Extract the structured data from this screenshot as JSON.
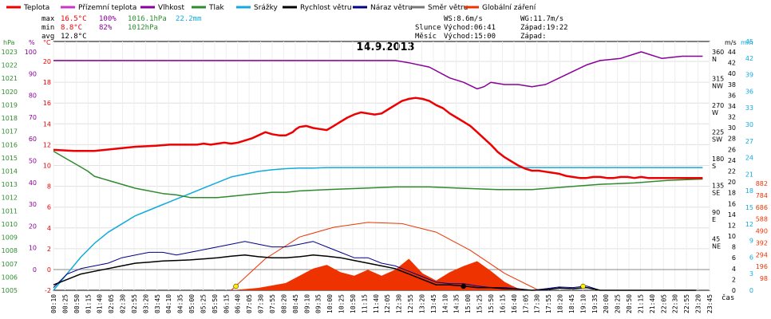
{
  "legend": [
    {
      "label": "Teplota",
      "color": "#ee0000"
    },
    {
      "label": "Přízemní teplota",
      "color": "#cc33cc"
    },
    {
      "label": "Vlhkost",
      "color": "#880099"
    },
    {
      "label": "Tlak",
      "color": "#2e8b2e"
    },
    {
      "label": "Srážky",
      "color": "#11aadd"
    },
    {
      "label": "Rychlost větru",
      "color": "#000000"
    },
    {
      "label": "Náraz větru",
      "color": "#000088"
    },
    {
      "label": "Směr větru",
      "color": "#777777"
    },
    {
      "label": "Globální záření",
      "color": "#ee3300"
    }
  ],
  "stats": {
    "max_label": "max",
    "max_temp": "16.5°C",
    "max_hum": "100%",
    "max_press": "1016.1hPa",
    "max_rain": "22.2mm",
    "min_label": "min",
    "min_temp": "8.8°C",
    "min_hum": "82%",
    "min_press": "1012hPa",
    "avg_label": "avg",
    "avg_temp": "12.8°C"
  },
  "info": {
    "ws": "WS:8.6m/s",
    "wg": "WG:11.7m/s",
    "sun_label": "Slunce",
    "sun_rise": "Východ:06:41",
    "sun_set": "Západ:19:22",
    "moon_label": "Měsíc",
    "moon_rise": "Východ:15:00",
    "moon_set": "Západ:"
  },
  "chart_data": {
    "type": "line",
    "title": "14.9.2013",
    "x_unit_label": "čas",
    "x_ticks": [
      "00:10",
      "00:25",
      "00:50",
      "01:15",
      "01:40",
      "02:05",
      "02:30",
      "02:55",
      "03:20",
      "03:45",
      "04:10",
      "04:35",
      "05:00",
      "05:25",
      "05:50",
      "06:15",
      "06:40",
      "07:05",
      "07:30",
      "07:55",
      "08:20",
      "08:45",
      "09:10",
      "09:35",
      "10:00",
      "10:25",
      "10:50",
      "11:15",
      "11:40",
      "12:05",
      "12:30",
      "12:55",
      "13:20",
      "13:45",
      "14:10",
      "14:35",
      "15:00",
      "15:25",
      "15:50",
      "16:15",
      "16:40",
      "17:05",
      "17:30",
      "17:55",
      "18:20",
      "18:45",
      "19:10",
      "19:35",
      "20:00",
      "20:25",
      "20:50",
      "21:15",
      "21:40",
      "22:05",
      "22:30",
      "22:55",
      "23:20",
      "23:45"
    ],
    "axes": {
      "hpa": {
        "label": "hPa",
        "ticks": [
          1005,
          1006,
          1007,
          1008,
          1009,
          1010,
          1011,
          1012,
          1013,
          1014,
          1015,
          1016,
          1017,
          1018,
          1019,
          1020,
          1021,
          1022,
          1023
        ]
      },
      "humidity": {
        "label": "%",
        "ticks": [
          0,
          10,
          20,
          30,
          40,
          50,
          60,
          70,
          80,
          90,
          100
        ]
      },
      "temp": {
        "label": "°C",
        "ticks": [
          -2,
          0,
          2,
          4,
          6,
          8,
          10,
          12,
          14,
          16,
          18,
          20
        ]
      },
      "wind": {
        "label": "m/s",
        "ticks": [
          0,
          2,
          4,
          6,
          8,
          10,
          12,
          14,
          16,
          18,
          20,
          22,
          24,
          26,
          28,
          30,
          32,
          34,
          36,
          38,
          40,
          42,
          44
        ]
      },
      "rain": {
        "label": "mm",
        "ticks": [
          0,
          3,
          6,
          9,
          12,
          15,
          18,
          21,
          24,
          27,
          30,
          33,
          36,
          39,
          42,
          45
        ]
      },
      "wdir": {
        "ticks": [
          {
            "deg": "45",
            "dir": "NE"
          },
          {
            "deg": "90",
            "dir": "E"
          },
          {
            "deg": "135",
            "dir": "SE"
          },
          {
            "deg": "180",
            "dir": "S"
          },
          {
            "deg": "225",
            "dir": "SW"
          },
          {
            "deg": "270",
            "dir": "W"
          },
          {
            "deg": "315",
            "dir": "NW"
          },
          {
            "deg": "360",
            "dir": "N"
          }
        ]
      },
      "rad": {
        "ticks": [
          98,
          196,
          294,
          392,
          490,
          588,
          686,
          784,
          882
        ]
      }
    },
    "series": [
      {
        "name": "Teplota",
        "unit": "°C",
        "x": [
          0,
          3,
          6,
          9,
          12,
          15,
          17,
          19,
          21,
          22,
          23,
          24,
          25,
          26,
          27,
          28,
          29,
          30,
          31,
          32,
          33,
          34,
          35,
          35.5,
          36,
          37,
          38,
          39,
          40,
          41,
          42,
          43,
          44,
          45,
          46,
          47,
          48,
          49,
          50,
          51,
          52,
          53,
          54,
          55,
          56,
          57,
          58,
          59,
          60,
          61,
          62,
          63,
          64,
          65,
          66,
          67,
          68,
          69,
          70,
          71,
          72,
          73,
          74,
          75,
          76,
          77,
          78,
          79,
          80,
          81,
          82,
          83,
          84,
          85,
          86,
          87,
          88,
          89,
          90,
          91,
          92,
          93,
          94,
          95
        ],
        "y": [
          11.5,
          11.4,
          11.4,
          11.6,
          11.8,
          11.9,
          12,
          12.0,
          12.0,
          12.1,
          12.0,
          12.1,
          12.2,
          12.1,
          12.2,
          12.4,
          12.6,
          12.9,
          13.2,
          13.0,
          12.9,
          12.9,
          13.2,
          13.5,
          13.7,
          13.8,
          13.6,
          13.5,
          13.4,
          13.8,
          14.2,
          14.6,
          14.9,
          15.1,
          15.0,
          14.9,
          15.0,
          15.4,
          15.8,
          16.2,
          16.4,
          16.5,
          16.4,
          16.2,
          15.8,
          15.5,
          15.0,
          14.6,
          14.2,
          13.8,
          13.2,
          12.6,
          12.0,
          11.3,
          10.8,
          10.4,
          10.0,
          9.7,
          9.5,
          9.5,
          9.4,
          9.3,
          9.2,
          9.0,
          8.9,
          8.8,
          8.8,
          8.9,
          8.9,
          8.8,
          8.8,
          8.9,
          8.9,
          8.8,
          8.9,
          8.8,
          8.8,
          8.8,
          8.8,
          8.8,
          8.8,
          8.8,
          8.8,
          8.8
        ],
        "color": "#ee0000"
      },
      {
        "name": "Vlhkost",
        "unit": "%",
        "x": [
          0,
          10,
          20,
          30,
          40,
          50,
          52,
          55,
          58,
          60,
          62,
          63,
          64,
          66,
          68,
          70,
          72,
          74,
          76,
          78,
          80,
          83,
          86,
          89,
          92,
          95
        ],
        "y": [
          96,
          96,
          96,
          96,
          96,
          96,
          95,
          93,
          88,
          86,
          83,
          84,
          86,
          85,
          85,
          84,
          85,
          88,
          91,
          94,
          96,
          97,
          100,
          97,
          98,
          98
        ],
        "color": "#880099"
      },
      {
        "name": "Tlak",
        "unit": "hPa",
        "x": [
          0,
          1,
          2,
          3,
          4,
          5,
          6,
          8,
          10,
          12,
          14,
          16,
          18,
          20,
          22,
          24,
          26,
          28,
          30,
          32,
          34,
          36,
          40,
          45,
          50,
          55,
          60,
          65,
          70,
          75,
          80,
          85,
          90,
          95
        ],
        "y": [
          1015.5,
          1015.2,
          1014.9,
          1014.6,
          1014.3,
          1014,
          1013.6,
          1013.3,
          1013,
          1012.7,
          1012.5,
          1012.3,
          1012.2,
          1012.0,
          1012.0,
          1012.0,
          1012.1,
          1012.2,
          1012.3,
          1012.4,
          1012.4,
          1012.5,
          1012.6,
          1012.7,
          1012.8,
          1012.8,
          1012.7,
          1012.6,
          1012.6,
          1012.8,
          1013,
          1013.1,
          1013.3,
          1013.4
        ],
        "color": "#2e8b2e"
      },
      {
        "name": "Srážky",
        "unit": "mm",
        "x": [
          0,
          2,
          4,
          6,
          8,
          10,
          12,
          14,
          16,
          18,
          20,
          22,
          24,
          26,
          28,
          30,
          32,
          34,
          36,
          38,
          40,
          45,
          50,
          55,
          60,
          65,
          70,
          75,
          80,
          85,
          90,
          95
        ],
        "y": [
          0,
          3,
          6,
          8.5,
          10.5,
          12,
          13.5,
          14.5,
          15.5,
          16.5,
          17.5,
          18.5,
          19.5,
          20.5,
          21,
          21.5,
          21.8,
          22.0,
          22.1,
          22.1,
          22.2,
          22.2,
          22.2,
          22.2,
          22.2,
          22.2,
          22.2,
          22.2,
          22.2,
          22.2,
          22.2,
          22.2
        ],
        "color": "#11aadd"
      },
      {
        "name": "Rychlost větru",
        "unit": "m/s",
        "x": [
          0,
          2,
          4,
          6,
          8,
          10,
          12,
          14,
          16,
          18,
          20,
          22,
          24,
          26,
          28,
          30,
          32,
          34,
          36,
          38,
          40,
          42,
          44,
          46,
          48,
          50,
          52,
          54,
          56,
          58,
          60,
          62,
          64,
          66,
          68,
          70,
          72,
          74,
          76,
          78,
          80,
          82,
          84,
          86,
          88,
          90,
          92,
          94
        ],
        "y": [
          1,
          2,
          3,
          3.5,
          4,
          4.5,
          5,
          5.2,
          5.4,
          5.5,
          5.6,
          5.8,
          6,
          6.3,
          6.5,
          6.2,
          6.0,
          6.0,
          6.2,
          6.5,
          6.3,
          6.0,
          5.5,
          5.0,
          4.5,
          4.0,
          3.0,
          2.0,
          1.0,
          1.0,
          0.8,
          0.5,
          0.5,
          0.3,
          0.2,
          0,
          0.1,
          0.4,
          0.3,
          0.5,
          0,
          0,
          0,
          0,
          0,
          0,
          0,
          0
        ],
        "color": "#000000"
      },
      {
        "name": "Náraz větru",
        "unit": "m/s",
        "x": [
          0,
          2,
          4,
          6,
          8,
          10,
          12,
          14,
          16,
          18,
          20,
          22,
          24,
          26,
          28,
          30,
          32,
          34,
          36,
          38,
          40,
          42,
          44,
          46,
          48,
          50,
          52,
          54,
          56,
          58,
          60,
          62,
          64,
          66,
          68,
          70,
          72,
          74,
          76,
          78,
          80,
          82,
          84,
          86,
          88,
          90,
          92,
          94
        ],
        "y": [
          0.5,
          3,
          4,
          4.5,
          5,
          6,
          6.5,
          7,
          7,
          6.5,
          7,
          7.5,
          8,
          8.5,
          9,
          8.5,
          8,
          8,
          8.5,
          9,
          8,
          7,
          6,
          6,
          5,
          4.5,
          3.5,
          2.5,
          1.5,
          1.2,
          1.2,
          0.8,
          0.5,
          0.5,
          0.3,
          0,
          0.3,
          0.6,
          0.5,
          0.8,
          0,
          0,
          0,
          0,
          0,
          0,
          0,
          0
        ],
        "color": "#000088"
      },
      {
        "name": "Globální záření",
        "unit": "W/m2",
        "x": [
          26,
          30,
          34,
          38,
          40,
          42,
          44,
          46,
          48,
          50,
          52,
          54,
          56,
          58,
          60,
          62,
          64,
          66,
          67,
          68,
          69,
          70
        ],
        "y": [
          0,
          20,
          60,
          180,
          210,
          150,
          120,
          170,
          120,
          170,
          260,
          140,
          80,
          150,
          200,
          240,
          160,
          70,
          40,
          15,
          5,
          0
        ],
        "color": "#ee3300"
      }
    ],
    "theoretical_radiation": {
      "x": [
        26,
        31,
        36,
        41,
        46,
        51,
        56,
        61,
        66,
        71
      ],
      "y": [
        0,
        260,
        440,
        520,
        560,
        550,
        480,
        330,
        140,
        0
      ]
    },
    "wind_direction": {
      "color": "#666666"
    }
  }
}
